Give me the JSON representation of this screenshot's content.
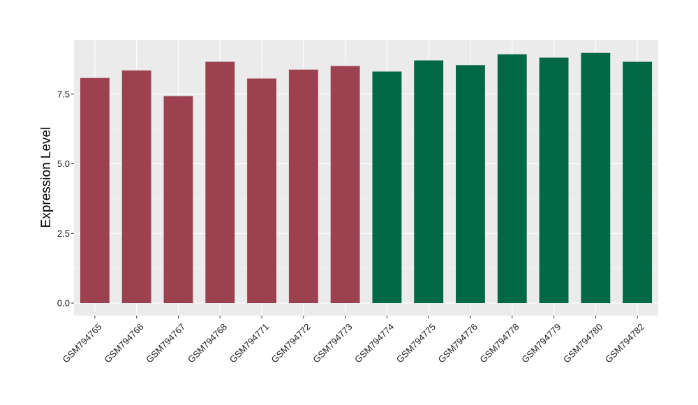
{
  "chart_data": {
    "type": "bar",
    "title": "",
    "xlabel": "",
    "ylabel": "Expression Level",
    "ylim": [
      -0.45,
      9.45
    ],
    "yticks": [
      "0.0",
      "2.5",
      "5.0",
      "7.5"
    ],
    "ytick_values": [
      0,
      2.5,
      5,
      7.5
    ],
    "grid": true,
    "legend": "none",
    "panel_background": "#ebebeb",
    "categories": [
      "GSM794765",
      "GSM794766",
      "GSM794767",
      "GSM794768",
      "GSM794771",
      "GSM794772",
      "GSM794773",
      "GSM794774",
      "GSM794775",
      "GSM794776",
      "GSM794778",
      "GSM794779",
      "GSM794780",
      "GSM794782"
    ],
    "values": [
      8.08,
      8.35,
      7.43,
      8.66,
      8.06,
      8.38,
      8.51,
      8.31,
      8.71,
      8.54,
      8.93,
      8.81,
      8.98,
      8.66
    ],
    "bar_colors": [
      "#9c4150",
      "#9c4150",
      "#9c4150",
      "#9c4150",
      "#9c4150",
      "#9c4150",
      "#9c4150",
      "#006845",
      "#006845",
      "#006845",
      "#006845",
      "#006845",
      "#006845",
      "#006845"
    ]
  }
}
